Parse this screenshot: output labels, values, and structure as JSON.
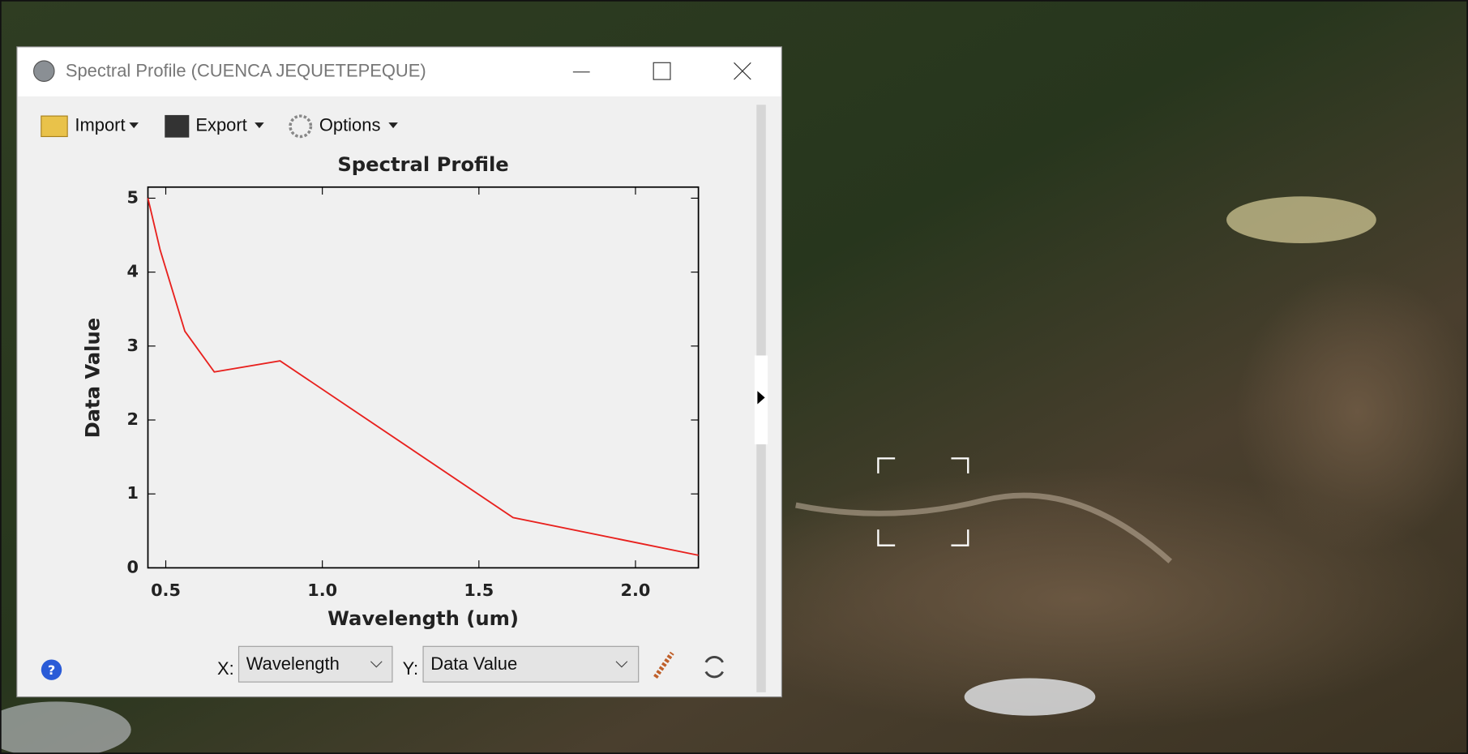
{
  "window": {
    "title": "Spectral Profile (CUENCA JEQUETEPEQUE)"
  },
  "toolbar": [
    "Import",
    "Export",
    "Options"
  ],
  "chart_data": {
    "type": "line",
    "title": "Spectral Profile",
    "x_label": "Wavelength (um)",
    "y_label": "Data Value",
    "x": [
      0.443,
      0.482,
      0.561,
      0.655,
      0.865,
      1.609,
      2.201
    ],
    "values": [
      5.0,
      4.3,
      3.2,
      2.65,
      2.8,
      0.68,
      0.17
    ],
    "color": "#e8211e",
    "xlim": [
      0.443,
      2.201
    ],
    "ylim": [
      0,
      5.15
    ],
    "xticks": [
      0.5,
      {
        "value": 1,
        "label": "1.0"
      },
      1.5,
      {
        "value": 2,
        "label": "2.0"
      }
    ],
    "yticks": [
      0,
      1,
      2,
      3,
      4,
      5
    ]
  },
  "controls": {
    "x_label": "X:",
    "x_select": "Wavelength",
    "y_label": "Y:",
    "y_select": "Data Value"
  }
}
